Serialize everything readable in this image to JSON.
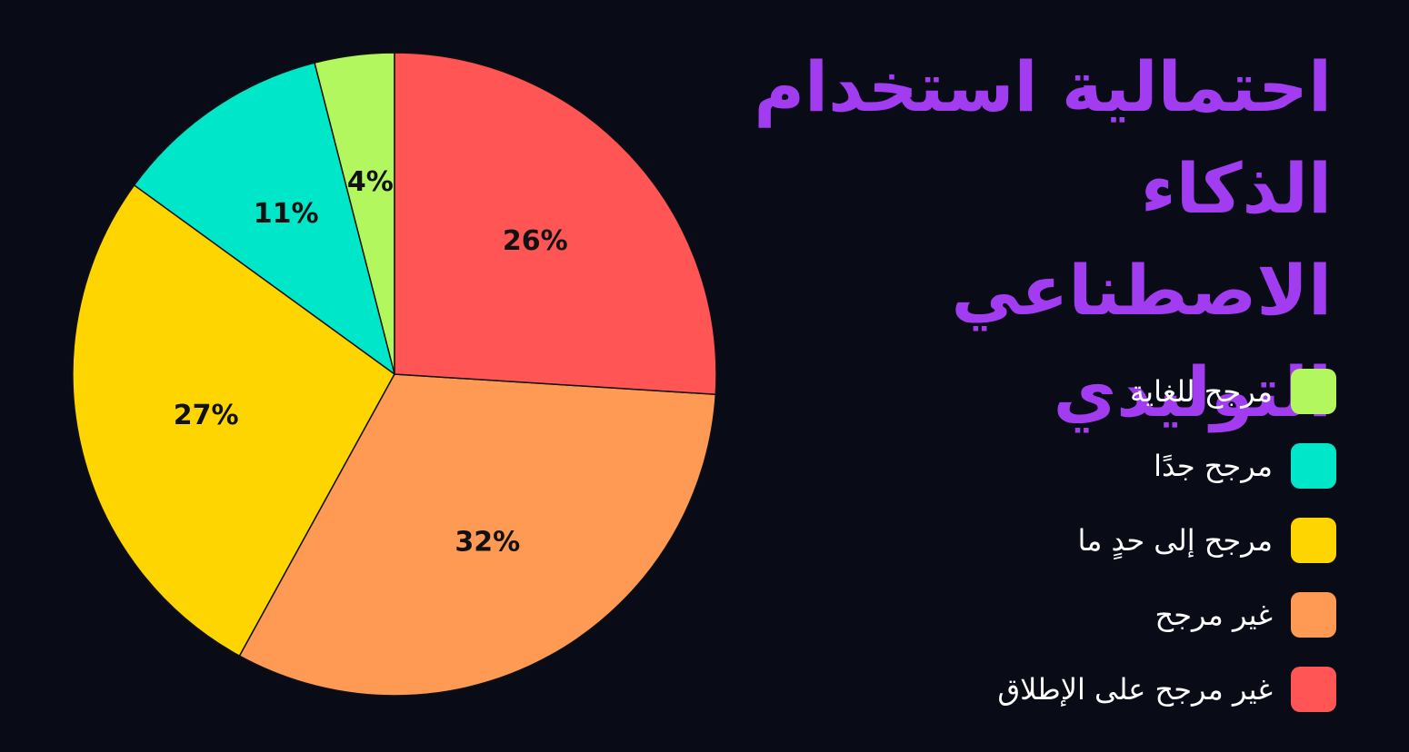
{
  "chart_data": {
    "type": "pie",
    "title": "احتمالية استخدام الذكاء الاصطناعي التوليدي",
    "categories": [
      "مرجح للغاية",
      "مرجح جدًا",
      "مرجح إلى حدٍ ما",
      "غير مرجح",
      "غير مرجح على الإطلاق"
    ],
    "values": [
      4,
      11,
      27,
      32,
      26
    ],
    "value_labels": [
      "4%",
      "11%",
      "27%",
      "32%",
      "26%"
    ],
    "colors": [
      "#b3f75f",
      "#00e6c8",
      "#ffd500",
      "#ff9a55",
      "#ff5555"
    ]
  }
}
